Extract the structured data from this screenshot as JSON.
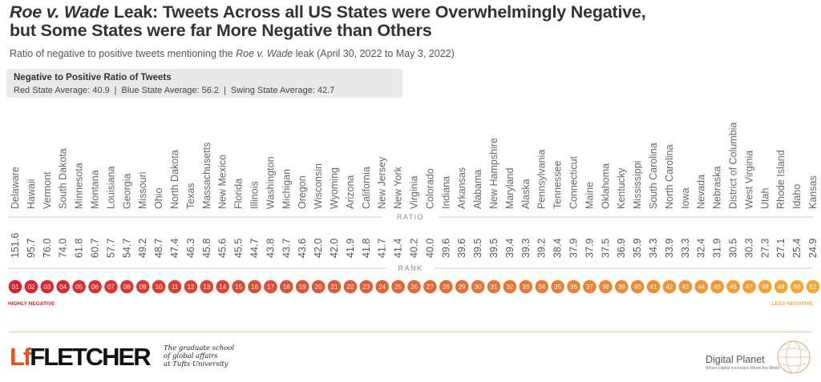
{
  "title": {
    "line1_italic": "Roe v. Wade",
    "line1_rest": " Leak: Tweets Across all US States were Overwhelmingly Negative,",
    "line2": "but Some States were far More Negative than Others"
  },
  "subtitle": {
    "before": "Ratio of negative to positive tweets mentioning the ",
    "italic": "Roe v. Wade",
    "after": " leak (April 30, 2022 to May 3, 2022)"
  },
  "summary": {
    "title": "Negative to Positive Ratio of Tweets",
    "red": "Red State Average: 40.9",
    "blue": "Blue State Average: 56.2",
    "swing": "Swing State Average: 42.7",
    "separator": "|"
  },
  "chart_data": {
    "type": "table",
    "title": "Roe v. Wade Leak: Tweets Across all US States were Overwhelmingly Negative, but Some States were far More Negative than Others",
    "ratio_label": "RATIO",
    "rank_label": "RANK",
    "legend_left": "HIGHLY NEGATIVE",
    "legend_right": "LESS NEGATIVE",
    "color_start": "#d9212f",
    "color_end": "#f4a836",
    "states": [
      "Delaware",
      "Hawaii",
      "Vermont",
      "South Dakota",
      "Minnesota",
      "Montana",
      "Louisiana",
      "Georgia",
      "Missouri",
      "Ohio",
      "North Dakota",
      "Texas",
      "Massachusetts",
      "New Mexico",
      "Florida",
      "Illinois",
      "Washington",
      "Michigan",
      "Oregon",
      "Wisconsin",
      "Wyoming",
      "Arizona",
      "California",
      "New Jersey",
      "New York",
      "Virginia",
      "Colorado",
      "Indiana",
      "Arkansas",
      "Alabama",
      "New Hampshire",
      "Maryland",
      "Alaska",
      "Pennsylvania",
      "Tennessee",
      "Connecticut",
      "Maine",
      "Oklahoma",
      "Kentucky",
      "Mississippi",
      "South Carolina",
      "North Carolina",
      "Iowa",
      "Nevada",
      "Nebraska",
      "District of Columbia",
      "West Virginia",
      "Utah",
      "Rhode Island",
      "Idaho",
      "Kansas"
    ],
    "ratios": [
      "151.6",
      "95.7",
      "76.0",
      "74.0",
      "61.8",
      "60.7",
      "57.7",
      "54.7",
      "49.2",
      "48.7",
      "47.4",
      "46.3",
      "45.8",
      "45.6",
      "45.5",
      "44.7",
      "43.8",
      "43.7",
      "43.6",
      "42.0",
      "42.0",
      "41.9",
      "41.8",
      "41.7",
      "41.4",
      "40.2",
      "40.0",
      "39.6",
      "39.6",
      "39.5",
      "39.5",
      "39.4",
      "39.3",
      "39.2",
      "38.4",
      "37.9",
      "37.9",
      "37.5",
      "36.9",
      "35.9",
      "34.3",
      "33.9",
      "33.3",
      "32.4",
      "31.9",
      "30.5",
      "30.3",
      "27.3",
      "27.1",
      "25.4",
      "24.9"
    ],
    "ranks": [
      "01",
      "02",
      "03",
      "04",
      "05",
      "06",
      "07",
      "08",
      "09",
      "10",
      "11",
      "12",
      "13",
      "14",
      "15",
      "16",
      "17",
      "18",
      "19",
      "20",
      "21",
      "22",
      "23",
      "24",
      "25",
      "26",
      "27",
      "28",
      "29",
      "30",
      "31",
      "32",
      "33",
      "34",
      "35",
      "36",
      "37",
      "38",
      "39",
      "40",
      "41",
      "42",
      "43",
      "44",
      "45",
      "46",
      "47",
      "48",
      "49",
      "50",
      "51"
    ]
  },
  "footer": {
    "fletcher_mark": "Lf",
    "fletcher_name": "FLETCHER",
    "tagline_1": "The graduate school",
    "tagline_2": "of global affairs",
    "tagline_3": "at Tufts University",
    "dp_name": "Digital Planet",
    "dp_tagline": "Where Digital Innovation Meets the World"
  }
}
